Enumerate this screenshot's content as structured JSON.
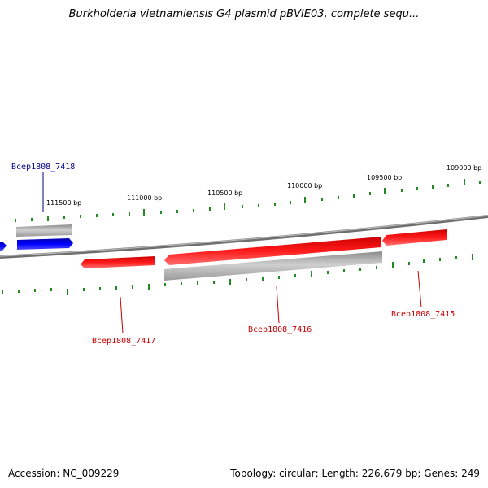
{
  "title": "Burkholderia vietnamiensis G4 plasmid pBVIE03, complete sequ...",
  "footer": {
    "accession_label": "Accession:",
    "accession": "NC_009229",
    "topology_label": "Topology:",
    "topology": "circular",
    "length_label": "Length:",
    "length": "226,679 bp",
    "genes_label": "Genes:",
    "genes": "249"
  },
  "ticks": [
    "111500 bp",
    "111000 bp",
    "110500 bp",
    "110000 bp",
    "109500 bp",
    "109000 bp"
  ],
  "colors": {
    "forward_gene": "#0000ff",
    "reverse_gene": "#ff0000",
    "feature_gray": "#b0b0b0",
    "tick": "#228b22",
    "backbone": "#808080",
    "forward_label": "#00008b",
    "reverse_label": "#cc0000"
  },
  "genes": [
    {
      "name": "Bcep1808_7418",
      "strand": "forward",
      "color": "#0000ff"
    },
    {
      "name": "Bcep1808_7417",
      "strand": "reverse",
      "color": "#ff0000"
    },
    {
      "name": "Bcep1808_7416",
      "strand": "reverse",
      "color": "#ff0000"
    },
    {
      "name": "Bcep1808_7415",
      "strand": "reverse",
      "color": "#ff0000"
    }
  ]
}
